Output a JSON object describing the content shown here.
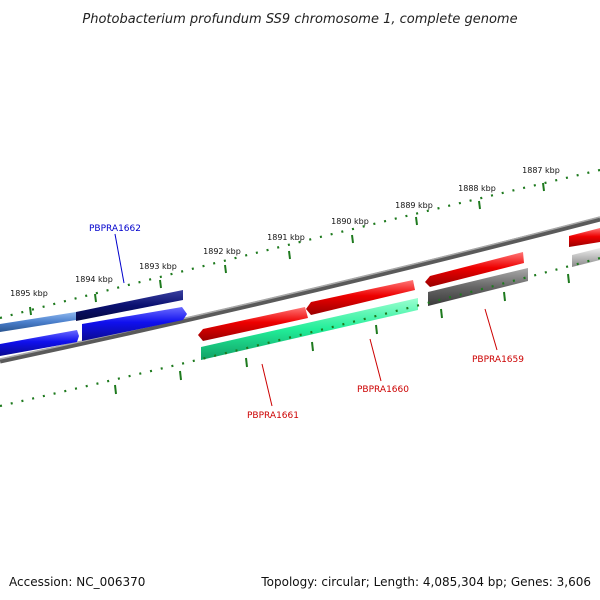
{
  "title": "Photobacterium profundum SS9 chromosome 1, complete genome",
  "footer": {
    "accession": "Accession: NC_006370",
    "summary": "Topology: circular; Length: 4,085,304 bp; Genes: 3,606"
  },
  "ticks": [
    "1887 kbp",
    "1888 kbp",
    "1889 kbp",
    "1890 kbp",
    "1891 kbp",
    "1892 kbp",
    "1893 kbp",
    "1894 kbp",
    "1895 kbp"
  ],
  "gene_labels": [
    {
      "name": "PBPRA1662",
      "color": "#0000cc"
    },
    {
      "name": "PBPRA1661",
      "color": "#cc0000"
    },
    {
      "name": "PBPRA1660",
      "color": "#cc0000"
    },
    {
      "name": "PBPRA1659",
      "color": "#cc0000"
    }
  ],
  "colors": {
    "backbone": "#7f7f7f",
    "tick_marks": "#1e7a1e",
    "forward_strand": "#ee0000",
    "reverse_strand": "#1010ee",
    "dark_blue": "#0a1070",
    "green_feature": "#22ee99",
    "gray_feature": "#666666"
  }
}
